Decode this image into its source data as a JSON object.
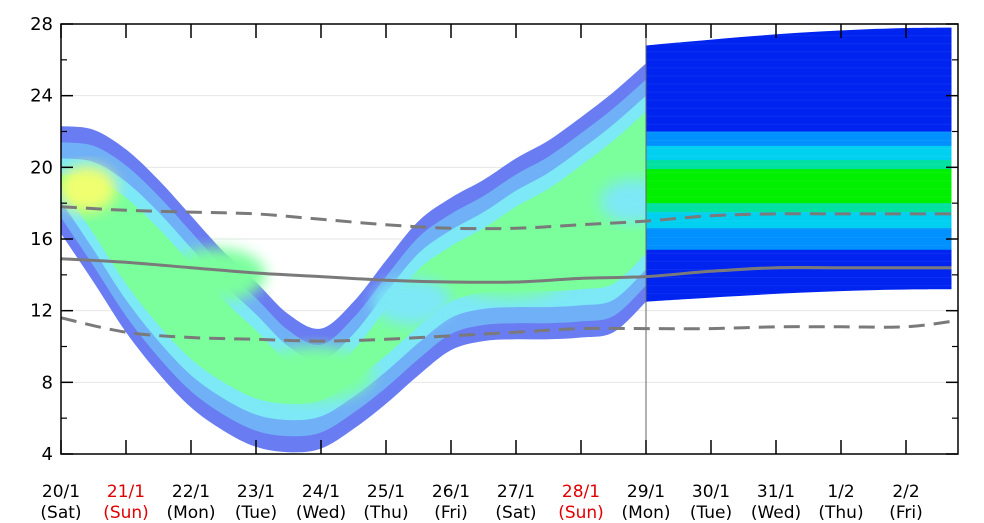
{
  "chart_data": {
    "type": "area",
    "title": "",
    "xlabel": "",
    "ylabel": "",
    "ylim": [
      4,
      28
    ],
    "yticks": [
      "4",
      "8",
      "12",
      "16",
      "20",
      "24",
      "28"
    ],
    "grid": true,
    "x_categories": [
      {
        "date": "20/1",
        "day": "(Sat)",
        "holiday": false
      },
      {
        "date": "21/1",
        "day": "(Sun)",
        "holiday": true
      },
      {
        "date": "22/1",
        "day": "(Mon)",
        "holiday": false
      },
      {
        "date": "23/1",
        "day": "(Tue)",
        "holiday": false
      },
      {
        "date": "24/1",
        "day": "(Wed)",
        "holiday": false
      },
      {
        "date": "25/1",
        "day": "(Thu)",
        "holiday": false
      },
      {
        "date": "26/1",
        "day": "(Fri)",
        "holiday": false
      },
      {
        "date": "27/1",
        "day": "(Sat)",
        "holiday": false
      },
      {
        "date": "28/1",
        "day": "(Sun)",
        "holiday": true
      },
      {
        "date": "29/1",
        "day": "(Mon)",
        "holiday": false
      },
      {
        "date": "30/1",
        "day": "(Tue)",
        "holiday": false
      },
      {
        "date": "31/1",
        "day": "(Wed)",
        "holiday": false
      },
      {
        "date": "1/2",
        "day": "(Thu)",
        "holiday": false
      },
      {
        "date": "2/2",
        "day": "(Fri)",
        "holiday": false
      }
    ],
    "forecast_split_x": 9,
    "x_end": 13.7,
    "envelope": {
      "x": [
        0,
        0.5,
        1,
        1.5,
        2,
        2.5,
        3,
        3.5,
        4,
        4.5,
        5,
        5.5,
        6,
        6.5,
        7,
        7.5,
        8,
        8.5,
        9
      ],
      "upper": [
        22.3,
        22.1,
        21.0,
        19.3,
        17.3,
        15.3,
        13.6,
        11.8,
        11.0,
        12.5,
        14.8,
        17.0,
        18.3,
        19.3,
        20.5,
        21.5,
        22.8,
        24.2,
        25.8
      ],
      "lower": [
        16.3,
        13.6,
        10.8,
        8.5,
        6.6,
        5.3,
        4.4,
        4.1,
        4.3,
        5.4,
        6.8,
        8.4,
        9.8,
        10.3,
        10.4,
        10.4,
        10.5,
        10.8,
        12.5
      ]
    },
    "hotspots": [
      {
        "x": 0.4,
        "y": 18.8,
        "rx": 0.45,
        "ry": 1.3,
        "level": 4
      },
      {
        "x": 2.4,
        "y": 14.0,
        "rx": 0.75,
        "ry": 1.5,
        "level": 3
      },
      {
        "x": 3.9,
        "y": 8.5,
        "rx": 0.9,
        "ry": 1.5,
        "level": 3
      },
      {
        "x": 5.4,
        "y": 12.5,
        "rx": 0.6,
        "ry": 1.3,
        "level": 2
      },
      {
        "x": 6.9,
        "y": 14.0,
        "rx": 0.9,
        "ry": 1.3,
        "level": 3
      },
      {
        "x": 8.8,
        "y": 18.1,
        "rx": 0.5,
        "ry": 1.2,
        "level": 2
      }
    ],
    "forecast_bands": [
      {
        "low": 12.5,
        "high": 26.8,
        "color": "#0024f0"
      },
      {
        "low": 15.4,
        "high": 22.0,
        "color": "#0090ff"
      },
      {
        "low": 16.6,
        "high": 21.2,
        "color": "#00d0f0"
      },
      {
        "low": 17.5,
        "high": 20.4,
        "color": "#00e0a0"
      },
      {
        "low": 18.0,
        "high": 19.9,
        "color": "#00f000"
      }
    ],
    "forecast_upper_end": 27.8,
    "forecast_lower_end": 13.2,
    "colors": {
      "level0": "#6a7cf2",
      "level1": "#70b0f6",
      "level2": "#7de8f6",
      "level3": "#7aff9c",
      "level4": "#f0ff70",
      "median_line": "#7a7a7a",
      "split_line": "#666666",
      "holiday_text": "#e00000"
    },
    "series": [
      {
        "style": "solid",
        "x": [
          0,
          1,
          2,
          3,
          4,
          5,
          6,
          7,
          8,
          9,
          10,
          11,
          12,
          13,
          13.7
        ],
        "values": [
          14.9,
          14.7,
          14.4,
          14.1,
          13.9,
          13.7,
          13.6,
          13.6,
          13.8,
          13.9,
          14.2,
          14.4,
          14.4,
          14.4,
          14.4
        ]
      },
      {
        "style": "dashed",
        "x": [
          0,
          1,
          2,
          3,
          4,
          5,
          6,
          7,
          8,
          9,
          10,
          11,
          12,
          13,
          13.7
        ],
        "values": [
          17.8,
          17.6,
          17.5,
          17.4,
          17.1,
          16.8,
          16.6,
          16.6,
          16.8,
          17.0,
          17.3,
          17.4,
          17.4,
          17.4,
          17.4
        ]
      },
      {
        "style": "dashed",
        "x": [
          0,
          1,
          2,
          3,
          4,
          5,
          6,
          7,
          8,
          9,
          10,
          11,
          12,
          13,
          13.7
        ],
        "values": [
          11.6,
          10.8,
          10.5,
          10.4,
          10.3,
          10.4,
          10.6,
          10.8,
          11.0,
          11.0,
          11.0,
          11.1,
          11.1,
          11.1,
          11.4
        ]
      }
    ]
  }
}
